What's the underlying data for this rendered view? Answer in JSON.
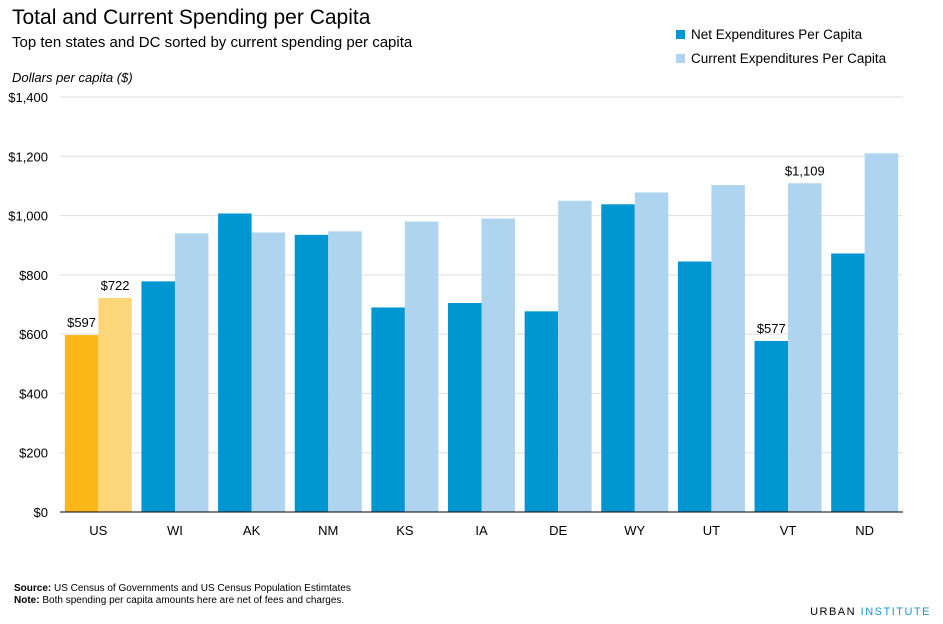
{
  "colors": {
    "net": "#0096d2",
    "current": "#aed4f0",
    "us_net": "#fbb718",
    "us_current": "#fdd67a",
    "grid": "#dedede",
    "axis": "#000000"
  },
  "legend": {
    "net": "Net Expenditures Per Capita",
    "current": "Current Expenditures Per Capita"
  },
  "footer": {
    "source_label": "Source:",
    "source_text": "US Census of Governments  and US Census Population Estimtates",
    "note_label": "Note:",
    "note_text": "Both spending per capita amounts here are net of fees and charges."
  },
  "brand": {
    "first": "URBAN",
    "second": "INSTITUTE"
  },
  "chart_data": {
    "type": "bar",
    "title": "Total and Current Spending per Capita",
    "subtitle": "Top ten states and DC sorted by current spending per capita",
    "xlabel": "",
    "ylabel": "Dollars per capita ($)",
    "ylim": [
      0,
      1400
    ],
    "yticks": [
      0,
      200,
      400,
      600,
      800,
      1000,
      1200,
      1400
    ],
    "ytick_labels": [
      "$0",
      "$200",
      "$400",
      "$600",
      "$800",
      "$1,000",
      "$1,200",
      "$1,400"
    ],
    "grid": true,
    "legend_position": "top-right",
    "categories": [
      "US",
      "WI",
      "AK",
      "NM",
      "KS",
      "IA",
      "DE",
      "WY",
      "UT",
      "VT",
      "ND"
    ],
    "series": [
      {
        "name": "Net Expenditures Per Capita",
        "values": [
          597,
          778,
          1007,
          935,
          690,
          705,
          677,
          1038,
          845,
          577,
          872
        ]
      },
      {
        "name": "Current Expenditures Per Capita",
        "values": [
          722,
          940,
          943,
          947,
          980,
          990,
          1050,
          1078,
          1103,
          1109,
          1210
        ]
      }
    ],
    "annotations": [
      {
        "category": "US",
        "series": 0,
        "text": "$597"
      },
      {
        "category": "US",
        "series": 1,
        "text": "$722"
      },
      {
        "category": "VT",
        "series": 0,
        "text": "$577"
      },
      {
        "category": "VT",
        "series": 1,
        "text": "$1,109"
      }
    ]
  }
}
